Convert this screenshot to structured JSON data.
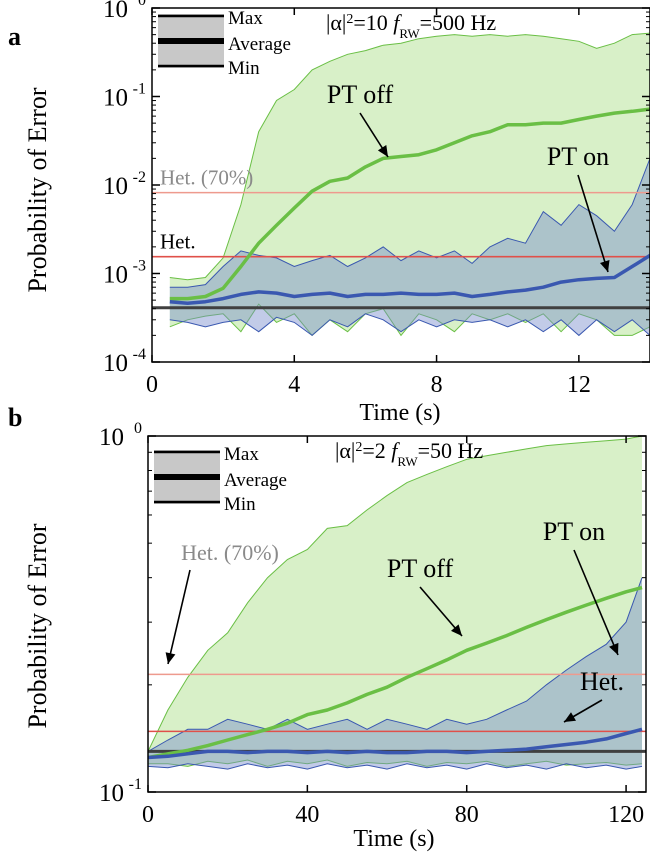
{
  "chart_data": [
    {
      "panel": "a",
      "type": "line",
      "title_parts": {
        "pre": "|α|",
        "sup": "2",
        "mid": "=10  ",
        "f": "f",
        "sub": "RW",
        "post": "=500 Hz"
      },
      "xlabel": "Time (s)",
      "ylabel": "Probability of Error",
      "xlim": [
        0,
        14
      ],
      "ylim": [
        0.0001,
        1
      ],
      "yscale": "log",
      "xticks": [
        "0",
        "4",
        "8",
        "12"
      ],
      "xtick_values": [
        0,
        4,
        8,
        12
      ],
      "yticks": [
        {
          "base": "10",
          "exp": "0",
          "value": 1
        },
        {
          "base": "10",
          "exp": "-1",
          "value": 0.1
        },
        {
          "base": "10",
          "exp": "-2",
          "value": 0.01
        },
        {
          "base": "10",
          "exp": "-3",
          "value": 0.001
        },
        {
          "base": "10",
          "exp": "-4",
          "value": 0.0001
        }
      ],
      "legend": {
        "max": "Max",
        "average": "Average",
        "min": "Min",
        "position": "top-left"
      },
      "series": [
        {
          "name": "PT off",
          "color": "#6abf45",
          "fill": "#d8f0c8",
          "x": [
            0.5,
            1,
            1.5,
            2,
            2.5,
            3,
            3.5,
            4,
            4.5,
            5,
            5.5,
            6,
            6.5,
            7,
            7.5,
            8,
            8.5,
            9,
            9.5,
            10,
            10.5,
            11,
            11.5,
            12,
            12.5,
            13,
            13.5,
            14
          ],
          "avg": [
            0.00052,
            0.00052,
            0.00055,
            0.00068,
            0.0012,
            0.0022,
            0.0035,
            0.0055,
            0.0085,
            0.011,
            0.012,
            0.016,
            0.02,
            0.021,
            0.022,
            0.025,
            0.03,
            0.036,
            0.04,
            0.048,
            0.048,
            0.05,
            0.05,
            0.055,
            0.06,
            0.065,
            0.068,
            0.072
          ],
          "max": [
            0.0009,
            0.00085,
            0.0009,
            0.0015,
            0.006,
            0.04,
            0.09,
            0.12,
            0.2,
            0.25,
            0.3,
            0.33,
            0.38,
            0.4,
            0.45,
            0.48,
            0.5,
            0.48,
            0.5,
            0.48,
            0.5,
            0.48,
            0.45,
            0.42,
            0.35,
            0.4,
            0.5,
            0.52
          ],
          "min": [
            0.00025,
            0.0003,
            0.00033,
            0.00035,
            0.00022,
            0.00045,
            0.00028,
            0.00035,
            0.0002,
            0.0003,
            0.00022,
            0.00035,
            0.0004,
            0.0002,
            0.00035,
            0.0003,
            0.00022,
            0.00035,
            0.0003,
            0.00035,
            0.00028,
            0.00035,
            0.00022,
            0.00035,
            0.0003,
            0.0002,
            0.0002,
            0.00025
          ]
        },
        {
          "name": "PT on",
          "color": "#3a58b0",
          "fill": "rgba(120,140,205,0.45)",
          "x": [
            0.5,
            1,
            1.5,
            2,
            2.5,
            3,
            3.5,
            4,
            4.5,
            5,
            5.5,
            6,
            6.5,
            7,
            7.5,
            8,
            8.5,
            9,
            9.5,
            10,
            10.5,
            11,
            11.5,
            12,
            12.5,
            13,
            13.5,
            14
          ],
          "avg": [
            0.00048,
            0.00046,
            0.00048,
            0.00052,
            0.00058,
            0.00062,
            0.0006,
            0.00055,
            0.00058,
            0.0006,
            0.00055,
            0.00058,
            0.00058,
            0.0006,
            0.00058,
            0.00058,
            0.0006,
            0.00055,
            0.00058,
            0.00062,
            0.00065,
            0.0007,
            0.0008,
            0.00085,
            0.00088,
            0.0009,
            0.0012,
            0.0016
          ],
          "max": [
            0.0007,
            0.0007,
            0.00075,
            0.0012,
            0.0018,
            0.0016,
            0.0015,
            0.0012,
            0.0014,
            0.0016,
            0.0012,
            0.0015,
            0.002,
            0.0014,
            0.0018,
            0.0015,
            0.0018,
            0.0013,
            0.002,
            0.0025,
            0.0022,
            0.005,
            0.0035,
            0.006,
            0.0045,
            0.003,
            0.006,
            0.02
          ],
          "min": [
            0.0003,
            0.00028,
            0.00025,
            0.00028,
            0.0003,
            0.00022,
            0.00032,
            0.00028,
            0.0002,
            0.0003,
            0.00025,
            0.00035,
            0.0003,
            0.00022,
            0.0003,
            0.00025,
            0.0003,
            0.00028,
            0.0003,
            0.00025,
            0.0003,
            0.00022,
            0.0003,
            0.0002,
            0.0003,
            0.00022,
            0.0003,
            0.0002
          ]
        }
      ],
      "hlines": [
        {
          "label": "Het. (70%)",
          "y": 0.0082,
          "color": "#ee9a8e",
          "label_gray": true
        },
        {
          "label": "Het.",
          "y": 0.00155,
          "color": "#e0504a",
          "label_gray": false
        },
        {
          "label": "",
          "y": 0.00041,
          "color": "#404040",
          "label_gray": false
        }
      ],
      "annotations": [
        {
          "text": "PT off",
          "points_to": [
            6.8,
            0.021
          ]
        },
        {
          "text": "PT on",
          "points_to": [
            12.8,
            0.00088
          ]
        }
      ]
    },
    {
      "panel": "b",
      "type": "line",
      "title_parts": {
        "pre": "|α|",
        "sup": "2",
        "mid": "=2  ",
        "f": "f",
        "sub": "RW",
        "post": "=50 Hz"
      },
      "xlabel": "Time (s)",
      "ylabel": "Probability of Error",
      "xlim": [
        0,
        125
      ],
      "ylim": [
        0.1,
        1
      ],
      "yscale": "log",
      "xticks": [
        "0",
        "40",
        "80",
        "120"
      ],
      "xtick_values": [
        0,
        40,
        80,
        120
      ],
      "yticks": [
        {
          "base": "10",
          "exp": "0",
          "value": 1
        },
        {
          "base": "10",
          "exp": "-1",
          "value": 0.1
        }
      ],
      "legend": {
        "max": "Max",
        "average": "Average",
        "min": "Min",
        "position": "top-left"
      },
      "series": [
        {
          "name": "PT off",
          "color": "#6abf45",
          "fill": "#d8f0c8",
          "x": [
            0,
            5,
            10,
            15,
            20,
            25,
            30,
            35,
            40,
            45,
            50,
            55,
            60,
            65,
            70,
            75,
            80,
            85,
            90,
            95,
            100,
            105,
            110,
            115,
            120,
            124
          ],
          "avg": [
            0.125,
            0.128,
            0.131,
            0.135,
            0.14,
            0.145,
            0.15,
            0.156,
            0.165,
            0.17,
            0.178,
            0.188,
            0.197,
            0.21,
            0.222,
            0.235,
            0.25,
            0.262,
            0.275,
            0.29,
            0.305,
            0.32,
            0.335,
            0.35,
            0.365,
            0.375
          ],
          "max": [
            0.13,
            0.17,
            0.21,
            0.25,
            0.28,
            0.34,
            0.4,
            0.45,
            0.48,
            0.55,
            0.56,
            0.62,
            0.68,
            0.74,
            0.78,
            0.82,
            0.86,
            0.88,
            0.9,
            0.92,
            0.94,
            0.95,
            0.96,
            0.97,
            0.98,
            1.0
          ],
          "min": [
            0.12,
            0.12,
            0.118,
            0.122,
            0.12,
            0.123,
            0.118,
            0.122,
            0.12,
            0.123,
            0.118,
            0.121,
            0.12,
            0.122,
            0.118,
            0.121,
            0.12,
            0.122,
            0.118,
            0.12,
            0.122,
            0.119,
            0.12,
            0.121,
            0.119,
            0.12
          ]
        },
        {
          "name": "PT on",
          "color": "#3a58b0",
          "fill": "rgba(120,140,205,0.45)",
          "x": [
            0,
            5,
            10,
            15,
            20,
            25,
            30,
            35,
            40,
            45,
            50,
            55,
            60,
            65,
            70,
            75,
            80,
            85,
            90,
            95,
            100,
            105,
            110,
            115,
            120,
            124
          ],
          "avg": [
            0.125,
            0.126,
            0.128,
            0.13,
            0.13,
            0.129,
            0.13,
            0.13,
            0.129,
            0.13,
            0.129,
            0.13,
            0.129,
            0.129,
            0.13,
            0.13,
            0.129,
            0.13,
            0.131,
            0.132,
            0.134,
            0.136,
            0.138,
            0.141,
            0.146,
            0.15
          ],
          "max": [
            0.13,
            0.14,
            0.15,
            0.15,
            0.16,
            0.155,
            0.15,
            0.16,
            0.15,
            0.155,
            0.16,
            0.15,
            0.16,
            0.155,
            0.15,
            0.16,
            0.155,
            0.16,
            0.17,
            0.18,
            0.2,
            0.22,
            0.24,
            0.26,
            0.3,
            0.4
          ],
          "min": [
            0.118,
            0.117,
            0.12,
            0.118,
            0.116,
            0.12,
            0.117,
            0.119,
            0.116,
            0.12,
            0.117,
            0.119,
            0.116,
            0.12,
            0.117,
            0.119,
            0.116,
            0.12,
            0.117,
            0.119,
            0.116,
            0.12,
            0.117,
            0.119,
            0.116,
            0.118
          ]
        }
      ],
      "hlines": [
        {
          "label": "Het. (70%)",
          "y": 0.214,
          "color": "#ee9a8e",
          "label_gray": true
        },
        {
          "label": "Het.",
          "y": 0.148,
          "color": "#e0504a",
          "label_gray": false
        },
        {
          "label": "",
          "y": 0.13,
          "color": "#404040",
          "label_gray": false
        }
      ],
      "annotations": [
        {
          "text": "PT off",
          "points_to": [
            76,
            0.26
          ]
        },
        {
          "text": "PT on",
          "points_to": [
            115,
            0.19
          ]
        },
        {
          "text": "Het.",
          "points_to": [
            102,
            0.148
          ]
        },
        {
          "text": "Het. (70%)",
          "points_to": [
            5,
            0.214
          ]
        }
      ]
    }
  ],
  "panel_labels": [
    "a",
    "b"
  ]
}
